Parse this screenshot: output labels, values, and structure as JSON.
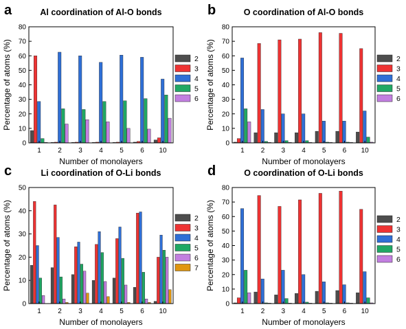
{
  "colors": {
    "2": "#4d4d4d",
    "3": "#ee3333",
    "4": "#2f6fd6",
    "5": "#1fa864",
    "6": "#c27fe0",
    "7": "#e0960f"
  },
  "chart_data": [
    {
      "type": "bar",
      "panel_label": "a",
      "title": "Al coordination of Al-O bonds",
      "xlabel": "Number of monolayers",
      "ylabel": "Percentage of atoms (%)",
      "categories": [
        "1",
        "2",
        "3",
        "4",
        "5",
        "6",
        "10"
      ],
      "ylim": [
        0,
        80
      ],
      "yticks": [
        0,
        10,
        20,
        30,
        40,
        50,
        60,
        70,
        80
      ],
      "legend_position": "right",
      "series": [
        {
          "name": "2",
          "values": [
            8.5,
            0.3,
            0.3,
            0.3,
            0.3,
            0.5,
            2
          ]
        },
        {
          "name": "3",
          "values": [
            60,
            0.5,
            0.5,
            0.5,
            0.5,
            1,
            3.5
          ]
        },
        {
          "name": "4",
          "values": [
            28.5,
            62.5,
            60,
            55.5,
            60.5,
            59,
            44
          ]
        },
        {
          "name": "5",
          "values": [
            3,
            23.5,
            23,
            28.5,
            29,
            30.5,
            33
          ]
        },
        {
          "name": "6",
          "values": [
            0.3,
            13,
            16,
            14.5,
            10,
            9.5,
            17
          ]
        }
      ]
    },
    {
      "type": "bar",
      "panel_label": "b",
      "title": "O coordination of Al-O bonds",
      "xlabel": "Number of monolayers",
      "ylabel": "Percentage of atoms (%)",
      "categories": [
        "1",
        "2",
        "3",
        "4",
        "5",
        "6",
        "10"
      ],
      "ylim": [
        0,
        80
      ],
      "yticks": [
        0,
        10,
        20,
        30,
        40,
        50,
        60,
        70,
        80
      ],
      "legend_position": "right",
      "series": [
        {
          "name": "2",
          "values": [
            0.5,
            7,
            7,
            7,
            8,
            8,
            7.5
          ]
        },
        {
          "name": "3",
          "values": [
            3,
            68.5,
            71,
            71.5,
            76,
            75.5,
            65
          ]
        },
        {
          "name": "4",
          "values": [
            58.5,
            23,
            20,
            20,
            15,
            15,
            22
          ]
        },
        {
          "name": "5",
          "values": [
            23.5,
            1,
            1.5,
            1.5,
            0.5,
            0.5,
            4
          ]
        },
        {
          "name": "6",
          "values": [
            14.5,
            0.3,
            0.3,
            0.3,
            0.3,
            0.3,
            0.5
          ]
        }
      ]
    },
    {
      "type": "bar",
      "panel_label": "c",
      "title": "Li coordination of O-Li bonds",
      "xlabel": "Number of monolayers",
      "ylabel": "Percentage of atoms (%)",
      "categories": [
        "1",
        "2",
        "3",
        "4",
        "5",
        "6",
        "10"
      ],
      "ylim": [
        0,
        50
      ],
      "yticks": [
        0,
        10,
        20,
        30,
        40,
        50
      ],
      "legend_position": "right",
      "series": [
        {
          "name": "2",
          "values": [
            16.5,
            15.5,
            12.5,
            10,
            11,
            7,
            1
          ]
        },
        {
          "name": "3",
          "values": [
            44,
            42.5,
            24.5,
            25.5,
            28,
            39,
            20
          ]
        },
        {
          "name": "4",
          "values": [
            25,
            28.5,
            26.5,
            31,
            33,
            39.5,
            29.5
          ]
        },
        {
          "name": "5",
          "values": [
            11,
            11.5,
            17,
            22,
            19.5,
            13.5,
            23
          ]
        },
        {
          "name": "6",
          "values": [
            3.5,
            2,
            14,
            9.5,
            8,
            2,
            20
          ]
        },
        {
          "name": "7",
          "values": [
            0,
            0.5,
            4.5,
            3,
            0.5,
            0.5,
            6
          ]
        }
      ]
    },
    {
      "type": "bar",
      "panel_label": "d",
      "title": "O coordination of O-Li bonds",
      "xlabel": "Number of monolayers",
      "ylabel": "Percentage of atoms (%)",
      "categories": [
        "1",
        "2",
        "3",
        "4",
        "5",
        "6",
        "10"
      ],
      "ylim": [
        0,
        80
      ],
      "yticks": [
        0,
        10,
        20,
        30,
        40,
        50,
        60,
        70,
        80
      ],
      "legend_position": "right",
      "series": [
        {
          "name": "2",
          "values": [
            0.5,
            8,
            6,
            7,
            8.5,
            9,
            7.5
          ]
        },
        {
          "name": "3",
          "values": [
            4,
            74.5,
            67,
            71.5,
            76,
            77.5,
            65
          ]
        },
        {
          "name": "4",
          "values": [
            65.5,
            17,
            23,
            20,
            15,
            13,
            22
          ]
        },
        {
          "name": "5",
          "values": [
            23,
            0.5,
            3.5,
            1,
            0.5,
            0.5,
            4
          ]
        },
        {
          "name": "6",
          "values": [
            7.5,
            0.3,
            0.3,
            0.3,
            0.3,
            0.3,
            0.5
          ]
        }
      ]
    }
  ]
}
